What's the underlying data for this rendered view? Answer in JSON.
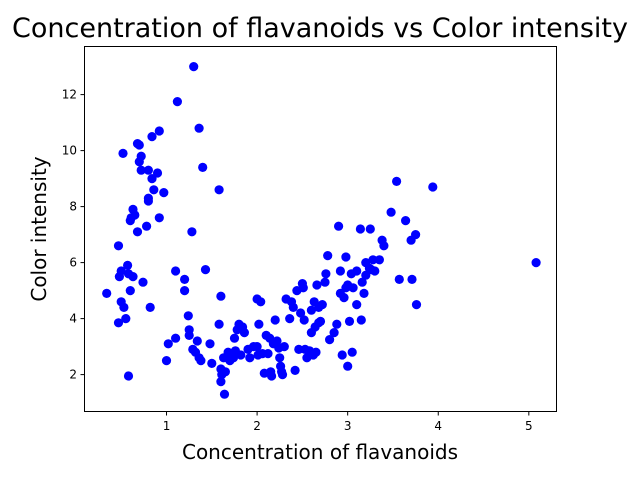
{
  "chart_data": {
    "type": "scatter",
    "title": "Concentration of flavanoids vs Color intensity",
    "xlabel": "Concentration of flavanoids",
    "ylabel": "Color intensity",
    "xlim": [
      0.1,
      5.3
    ],
    "ylim": [
      0.7,
      13.7
    ],
    "xticks": [
      1,
      2,
      3,
      4,
      5
    ],
    "yticks": [
      2,
      4,
      6,
      8,
      10,
      12
    ],
    "grid": false,
    "legend": "none",
    "marker_color": "#0000ff",
    "points": [
      [
        0.34,
        4.9
      ],
      [
        0.47,
        6.6
      ],
      [
        0.47,
        3.85
      ],
      [
        0.48,
        5.5
      ],
      [
        0.5,
        5.7
      ],
      [
        0.5,
        4.6
      ],
      [
        0.52,
        9.9
      ],
      [
        0.53,
        4.4
      ],
      [
        0.55,
        4.0
      ],
      [
        0.57,
        5.9
      ],
      [
        0.58,
        1.95
      ],
      [
        0.58,
        5.6
      ],
      [
        0.6,
        7.5
      ],
      [
        0.6,
        5.0
      ],
      [
        0.61,
        7.6
      ],
      [
        0.63,
        5.5
      ],
      [
        0.63,
        7.9
      ],
      [
        0.65,
        7.7
      ],
      [
        0.68,
        10.25
      ],
      [
        0.68,
        7.1
      ],
      [
        0.7,
        9.6
      ],
      [
        0.7,
        10.2
      ],
      [
        0.72,
        9.3
      ],
      [
        0.72,
        9.8
      ],
      [
        0.74,
        5.3
      ],
      [
        0.78,
        7.3
      ],
      [
        0.8,
        9.3
      ],
      [
        0.8,
        8.3
      ],
      [
        0.8,
        8.2
      ],
      [
        0.82,
        4.4
      ],
      [
        0.84,
        9.0
      ],
      [
        0.84,
        10.5
      ],
      [
        0.86,
        8.6
      ],
      [
        0.9,
        9.2
      ],
      [
        0.92,
        10.7
      ],
      [
        0.92,
        7.6
      ],
      [
        0.97,
        8.5
      ],
      [
        1.0,
        2.5
      ],
      [
        1.02,
        3.1
      ],
      [
        1.1,
        5.7
      ],
      [
        1.1,
        3.3
      ],
      [
        1.12,
        11.75
      ],
      [
        1.2,
        5.0
      ],
      [
        1.2,
        5.4
      ],
      [
        1.24,
        4.1
      ],
      [
        1.25,
        3.6
      ],
      [
        1.25,
        3.4
      ],
      [
        1.28,
        7.1
      ],
      [
        1.29,
        2.9
      ],
      [
        1.3,
        13.0
      ],
      [
        1.32,
        2.8
      ],
      [
        1.34,
        3.2
      ],
      [
        1.36,
        10.8
      ],
      [
        1.36,
        2.6
      ],
      [
        1.38,
        2.5
      ],
      [
        1.4,
        9.4
      ],
      [
        1.43,
        5.75
      ],
      [
        1.48,
        3.1
      ],
      [
        1.5,
        2.4
      ],
      [
        1.58,
        8.6
      ],
      [
        1.58,
        3.8
      ],
      [
        1.6,
        2.2
      ],
      [
        1.6,
        1.75
      ],
      [
        1.6,
        4.8
      ],
      [
        1.61,
        2.0
      ],
      [
        1.63,
        2.6
      ],
      [
        1.64,
        1.3
      ],
      [
        1.65,
        2.1
      ],
      [
        1.68,
        2.8
      ],
      [
        1.7,
        2.5
      ],
      [
        1.72,
        2.7
      ],
      [
        1.74,
        2.6
      ],
      [
        1.75,
        3.3
      ],
      [
        1.76,
        2.85
      ],
      [
        1.78,
        3.6
      ],
      [
        1.8,
        3.8
      ],
      [
        1.82,
        2.7
      ],
      [
        1.84,
        3.7
      ],
      [
        1.86,
        3.5
      ],
      [
        1.9,
        2.9
      ],
      [
        1.92,
        2.6
      ],
      [
        1.96,
        3.0
      ],
      [
        2.0,
        3.0
      ],
      [
        2.0,
        4.7
      ],
      [
        2.01,
        2.7
      ],
      [
        2.02,
        3.8
      ],
      [
        2.04,
        4.6
      ],
      [
        2.06,
        2.75
      ],
      [
        2.08,
        2.05
      ],
      [
        2.1,
        3.4
      ],
      [
        2.12,
        2.75
      ],
      [
        2.14,
        3.3
      ],
      [
        2.15,
        2.1
      ],
      [
        2.16,
        1.95
      ],
      [
        2.18,
        3.1
      ],
      [
        2.2,
        3.95
      ],
      [
        2.22,
        3.2
      ],
      [
        2.24,
        2.95
      ],
      [
        2.25,
        2.6
      ],
      [
        2.26,
        2.3
      ],
      [
        2.27,
        2.1
      ],
      [
        2.28,
        2.0
      ],
      [
        2.3,
        3.0
      ],
      [
        2.32,
        4.7
      ],
      [
        2.36,
        4.0
      ],
      [
        2.38,
        4.6
      ],
      [
        2.4,
        4.4
      ],
      [
        2.42,
        2.15
      ],
      [
        2.44,
        5.0
      ],
      [
        2.46,
        2.9
      ],
      [
        2.48,
        4.2
      ],
      [
        2.5,
        5.25
      ],
      [
        2.51,
        5.1
      ],
      [
        2.52,
        3.95
      ],
      [
        2.53,
        2.9
      ],
      [
        2.55,
        2.6
      ],
      [
        2.58,
        2.85
      ],
      [
        2.6,
        3.5
      ],
      [
        2.6,
        4.3
      ],
      [
        2.62,
        2.7
      ],
      [
        2.63,
        4.6
      ],
      [
        2.64,
        3.7
      ],
      [
        2.65,
        2.8
      ],
      [
        2.66,
        5.2
      ],
      [
        2.68,
        4.4
      ],
      [
        2.68,
        3.85
      ],
      [
        2.7,
        3.9
      ],
      [
        2.72,
        4.5
      ],
      [
        2.75,
        5.3
      ],
      [
        2.76,
        5.6
      ],
      [
        2.78,
        6.25
      ],
      [
        2.8,
        3.25
      ],
      [
        2.85,
        3.5
      ],
      [
        2.88,
        3.8
      ],
      [
        2.9,
        7.3
      ],
      [
        2.92,
        4.9
      ],
      [
        2.92,
        5.7
      ],
      [
        2.94,
        2.7
      ],
      [
        2.96,
        4.75
      ],
      [
        2.98,
        5.1
      ],
      [
        2.98,
        6.2
      ],
      [
        3.0,
        5.2
      ],
      [
        3.0,
        2.3
      ],
      [
        3.02,
        3.9
      ],
      [
        3.04,
        5.6
      ],
      [
        3.05,
        2.8
      ],
      [
        3.06,
        5.1
      ],
      [
        3.1,
        4.5
      ],
      [
        3.1,
        5.7
      ],
      [
        3.14,
        7.2
      ],
      [
        3.15,
        3.95
      ],
      [
        3.16,
        5.3
      ],
      [
        3.18,
        4.9
      ],
      [
        3.2,
        6.0
      ],
      [
        3.2,
        5.55
      ],
      [
        3.24,
        5.8
      ],
      [
        3.25,
        7.2
      ],
      [
        3.26,
        5.75
      ],
      [
        3.28,
        6.1
      ],
      [
        3.3,
        5.7
      ],
      [
        3.35,
        6.1
      ],
      [
        3.38,
        6.8
      ],
      [
        3.4,
        6.6
      ],
      [
        3.48,
        7.8
      ],
      [
        3.54,
        8.9
      ],
      [
        3.57,
        5.4
      ],
      [
        3.64,
        7.5
      ],
      [
        3.7,
        6.8
      ],
      [
        3.71,
        5.4
      ],
      [
        3.75,
        7.0
      ],
      [
        3.76,
        4.5
      ],
      [
        3.94,
        8.7
      ],
      [
        5.08,
        6.0
      ]
    ]
  }
}
